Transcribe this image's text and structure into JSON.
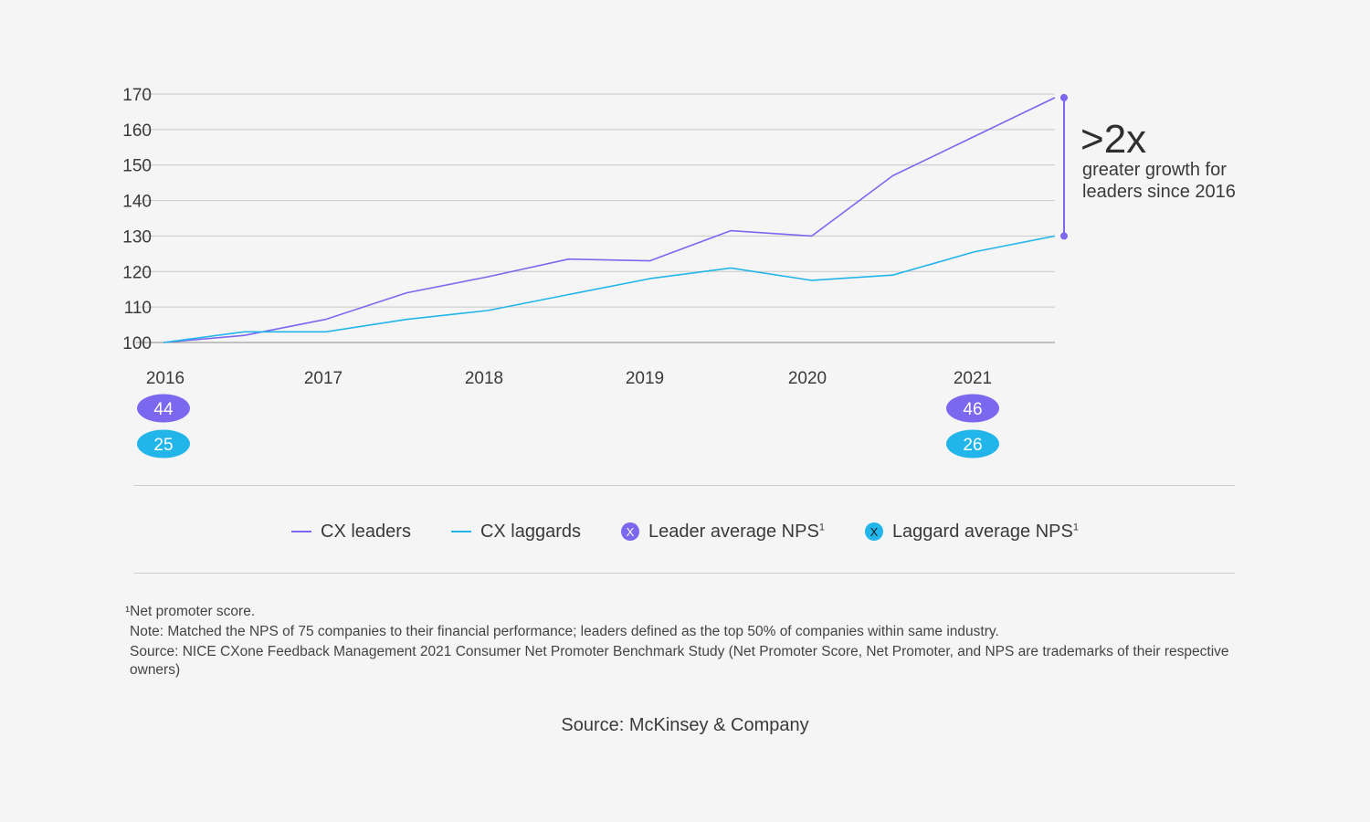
{
  "chart_data": {
    "type": "line",
    "ylim": [
      100,
      170
    ],
    "yticks": [
      100,
      110,
      120,
      130,
      140,
      150,
      160,
      170
    ],
    "x_tick_labels": [
      "2016",
      "2017",
      "2018",
      "2019",
      "2020",
      "2021"
    ],
    "series": [
      {
        "name": "CX leaders",
        "color": "#7b68ee",
        "points": [
          {
            "x": 2016.0,
            "y": 100
          },
          {
            "x": 2016.5,
            "y": 102
          },
          {
            "x": 2017.0,
            "y": 106.5
          },
          {
            "x": 2017.5,
            "y": 114
          },
          {
            "x": 2018.0,
            "y": 118.5
          },
          {
            "x": 2018.5,
            "y": 123.5
          },
          {
            "x": 2019.0,
            "y": 123
          },
          {
            "x": 2019.5,
            "y": 131.5
          },
          {
            "x": 2020.0,
            "y": 130
          },
          {
            "x": 2020.5,
            "y": 147
          },
          {
            "x": 2021.0,
            "y": 158
          },
          {
            "x": 2021.5,
            "y": 169
          }
        ]
      },
      {
        "name": "CX laggards",
        "color": "#22b5ea",
        "points": [
          {
            "x": 2016.0,
            "y": 100
          },
          {
            "x": 2016.5,
            "y": 103
          },
          {
            "x": 2017.0,
            "y": 103
          },
          {
            "x": 2017.5,
            "y": 106.5
          },
          {
            "x": 2018.0,
            "y": 109
          },
          {
            "x": 2018.5,
            "y": 113.5
          },
          {
            "x": 2019.0,
            "y": 118
          },
          {
            "x": 2019.5,
            "y": 121
          },
          {
            "x": 2020.0,
            "y": 117.5
          },
          {
            "x": 2020.5,
            "y": 119
          },
          {
            "x": 2021.0,
            "y": 125.5
          },
          {
            "x": 2021.5,
            "y": 130
          }
        ]
      }
    ],
    "nps_badges": [
      {
        "series": "Leader average NPS",
        "year": "2016",
        "value": "44",
        "color": "#7b68ee"
      },
      {
        "series": "Laggard average NPS",
        "year": "2016",
        "value": "25",
        "color": "#22b5ea"
      },
      {
        "series": "Leader average NPS",
        "year": "2021",
        "value": "46",
        "color": "#7b68ee"
      },
      {
        "series": "Laggard average NPS",
        "year": "2021",
        "value": "26",
        "color": "#22b5ea"
      }
    ],
    "annotation": {
      "headline": ">2x",
      "line1": "greater growth for",
      "line2": "leaders since 2016",
      "from_y": 130,
      "to_y": 169
    },
    "grid": true
  },
  "legend": {
    "leaders": "CX leaders",
    "laggards": "CX laggards",
    "leader_nps": "Leader average NPS",
    "laggard_nps": "Laggard average NPS",
    "marker_glyph": "X",
    "superscript": "1"
  },
  "notes": {
    "footnote": "¹Net promoter score.",
    "note": "Note: Matched the NPS of 75 companies to their financial performance; leaders defined as the top 50% of companies within same industry.",
    "source_detail": "Source: NICE CXone Feedback Management 2021 Consumer Net Promoter Benchmark Study (Net Promoter Score, Net Promoter, and NPS are trademarks of their respective owners)"
  },
  "source": "Source: McKinsey & Company"
}
